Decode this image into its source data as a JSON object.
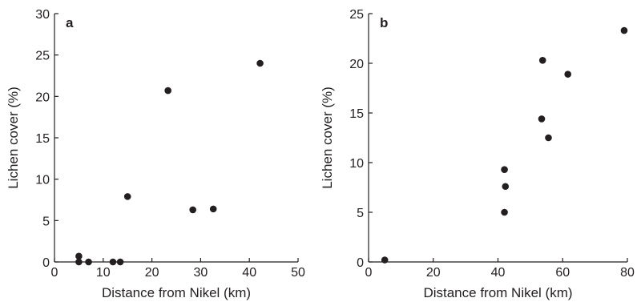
{
  "chart_data": [
    {
      "type": "scatter",
      "panel_label": "a",
      "xlabel": "Distance from Nikel (km)",
      "ylabel": "Lichen cover (%)",
      "xlim": [
        0,
        50
      ],
      "ylim": [
        0,
        30
      ],
      "xticks": [
        "0",
        "10",
        "20",
        "30",
        "40",
        "50"
      ],
      "yticks": [
        "0",
        "5",
        "10",
        "15",
        "20",
        "25",
        "30"
      ],
      "grid": false,
      "points": [
        {
          "x": 5.0,
          "y": 0.7
        },
        {
          "x": 5.0,
          "y": 0.0
        },
        {
          "x": 7.0,
          "y": 0.0
        },
        {
          "x": 12.0,
          "y": 0.0
        },
        {
          "x": 13.5,
          "y": 0.0
        },
        {
          "x": 15.0,
          "y": 7.9
        },
        {
          "x": 23.3,
          "y": 20.7
        },
        {
          "x": 28.4,
          "y": 6.3
        },
        {
          "x": 32.6,
          "y": 6.4
        },
        {
          "x": 42.2,
          "y": 24.0
        }
      ]
    },
    {
      "type": "scatter",
      "panel_label": "b",
      "xlabel": "Distance from Nikel (km)",
      "ylabel": "Lichen cover (%)",
      "xlim": [
        0,
        80
      ],
      "ylim": [
        0,
        25
      ],
      "xticks": [
        "0",
        "20",
        "40",
        "60",
        "80"
      ],
      "yticks": [
        "0",
        "5",
        "10",
        "15",
        "20",
        "25"
      ],
      "grid": false,
      "points": [
        {
          "x": 5.0,
          "y": 0.2
        },
        {
          "x": 42.0,
          "y": 9.3
        },
        {
          "x": 42.3,
          "y": 7.6
        },
        {
          "x": 42.0,
          "y": 5.0
        },
        {
          "x": 53.5,
          "y": 14.4
        },
        {
          "x": 53.8,
          "y": 20.3
        },
        {
          "x": 55.6,
          "y": 12.5
        },
        {
          "x": 61.6,
          "y": 18.9
        },
        {
          "x": 79.0,
          "y": 23.3
        }
      ]
    }
  ]
}
